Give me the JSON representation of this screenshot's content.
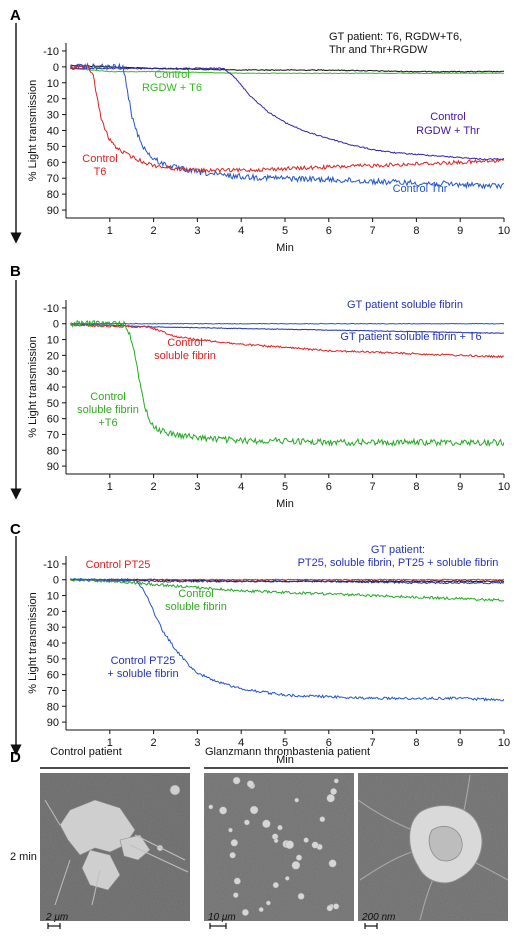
{
  "chart_data": [
    {
      "type": "line",
      "panel": "A",
      "ylabel": "% Light transmission",
      "xlabel": "Min",
      "xlim": [
        0,
        10
      ],
      "ylim": [
        -15,
        95
      ],
      "y_inverted": true,
      "xticks": [
        1,
        2,
        3,
        4,
        5,
        6,
        7,
        8,
        9,
        10
      ],
      "yticks": [
        -10,
        0,
        10,
        20,
        30,
        40,
        50,
        60,
        70,
        80,
        90
      ],
      "annotations": [
        {
          "text": "GT patient: T6, RGDW+T6,",
          "color": "#111111"
        },
        {
          "text": "Thr and Thr+RGDW",
          "color": "#111111"
        },
        {
          "text": "Control",
          "color": "#33bb22"
        },
        {
          "text": "RGDW + T6",
          "color": "#33bb22"
        },
        {
          "text": "Control",
          "color": "#4411aa"
        },
        {
          "text": "RGDW + Thr",
          "color": "#4411aa"
        },
        {
          "text": "Control",
          "color": "#dd2222"
        },
        {
          "text": "T6",
          "color": "#dd2222"
        },
        {
          "text": "Control Thr",
          "color": "#2255cc"
        }
      ],
      "series": [
        {
          "name": "Control T6",
          "color": "#dd2222",
          "noise": 1.2,
          "x": [
            0.1,
            0.5,
            0.62,
            0.7,
            0.8,
            0.9,
            1.0,
            1.2,
            1.4,
            1.6,
            1.8,
            2.0,
            2.5,
            3.0,
            3.5,
            4.0,
            5.0,
            6.0,
            7.0,
            8.0,
            9.0,
            10.0
          ],
          "y": [
            0,
            0,
            5,
            18,
            32,
            40,
            46,
            52,
            55,
            58,
            60,
            62,
            64,
            65,
            65,
            65,
            64,
            63,
            62,
            61,
            60,
            59
          ]
        },
        {
          "name": "Control Thr",
          "color": "#2255cc",
          "noise": 1.8,
          "x": [
            0.1,
            1.3,
            1.4,
            1.5,
            1.6,
            1.8,
            2.0,
            2.3,
            2.6,
            3.0,
            3.5,
            4.0,
            5.0,
            6.0,
            7.0,
            8.0,
            9.0,
            10.0
          ],
          "y": [
            0,
            0,
            15,
            30,
            40,
            52,
            58,
            62,
            64,
            66,
            68,
            69,
            70,
            71,
            72,
            73,
            74,
            75
          ]
        },
        {
          "name": "Control RGDW + Thr",
          "color": "#3322aa",
          "noise": 0.4,
          "x": [
            0.1,
            3.6,
            3.8,
            4.2,
            4.6,
            5.0,
            5.5,
            6.0,
            6.5,
            7.0,
            7.5,
            8.0,
            8.5,
            9.0,
            9.5,
            10.0
          ],
          "y": [
            1,
            1,
            5,
            18,
            28,
            35,
            41,
            45,
            49,
            52,
            54,
            55,
            56,
            57,
            58,
            58
          ]
        },
        {
          "name": "Control RGDW + T6",
          "color": "#33bb22",
          "noise": 0.2,
          "x": [
            0.1,
            0.6,
            1.0,
            2.0,
            4.0,
            6.0,
            8.0,
            10.0
          ],
          "y": [
            1,
            2,
            3,
            3,
            4,
            4,
            4,
            4
          ]
        },
        {
          "name": "GT patient",
          "color": "#111111",
          "noise": 0.3,
          "x": [
            0.1,
            1.0,
            2.0,
            4.0,
            6.0,
            8.0,
            10.0
          ],
          "y": [
            -1,
            0,
            1,
            2,
            2,
            3,
            3
          ]
        }
      ]
    },
    {
      "type": "line",
      "panel": "B",
      "ylabel": "% Light transmission",
      "xlabel": "Min",
      "xlim": [
        0,
        10
      ],
      "ylim": [
        -15,
        95
      ],
      "y_inverted": true,
      "xticks": [
        1,
        2,
        3,
        4,
        5,
        6,
        7,
        8,
        9,
        10
      ],
      "yticks": [
        -10,
        0,
        10,
        20,
        30,
        40,
        50,
        60,
        70,
        80,
        90
      ],
      "annotations": [
        {
          "text": "GT patient soluble fibrin",
          "color": "#2233bb"
        },
        {
          "text": "GT patient soluble fibrin + T6",
          "color": "#2233bb"
        },
        {
          "text": "Control",
          "color": "#dd2222"
        },
        {
          "text": "soluble fibrin",
          "color": "#dd2222"
        },
        {
          "text": "Control",
          "color": "#33aa22"
        },
        {
          "text": "soluble fibrin",
          "color": "#33aa22"
        },
        {
          "text": "+T6",
          "color": "#33aa22"
        }
      ],
      "series": [
        {
          "name": "Control soluble fibrin + T6",
          "color": "#22aa22",
          "noise": 2.0,
          "x": [
            0.1,
            1.35,
            1.5,
            1.6,
            1.7,
            1.8,
            1.9,
            2.0,
            2.2,
            2.5,
            3.0,
            3.5,
            4.0,
            5.0,
            6.0,
            6.8,
            7.0,
            8.0,
            9.0,
            10.0
          ],
          "y": [
            0,
            0,
            10,
            25,
            40,
            52,
            60,
            65,
            68,
            70,
            72,
            73,
            74,
            74,
            75,
            75,
            75,
            75,
            75,
            75
          ]
        },
        {
          "name": "Control soluble fibrin",
          "color": "#dd2222",
          "noise": 0.6,
          "x": [
            0.1,
            1.9,
            2.5,
            3.0,
            4.0,
            5.0,
            6.0,
            7.0,
            8.0,
            9.0,
            10.0
          ],
          "y": [
            1,
            2,
            8,
            10,
            13,
            15,
            17,
            18,
            19,
            20,
            21
          ]
        },
        {
          "name": "GT patient soluble fibrin + T6",
          "color": "#2233aa",
          "noise": 0.2,
          "x": [
            0.1,
            1.0,
            2.0,
            4.0,
            6.0,
            8.0,
            10.0
          ],
          "y": [
            0,
            1,
            2,
            3,
            4,
            5,
            6
          ]
        },
        {
          "name": "GT patient soluble fibrin",
          "color": "#2255cc",
          "noise": 0.2,
          "x": [
            0.1,
            1.0,
            2.0,
            4.0,
            6.0,
            8.0,
            10.0
          ],
          "y": [
            0,
            0,
            0,
            0,
            0,
            0,
            0
          ]
        }
      ]
    },
    {
      "type": "line",
      "panel": "C",
      "ylabel": "% Light transmission",
      "xlabel": "Min",
      "xlim": [
        0,
        10
      ],
      "ylim": [
        -15,
        95
      ],
      "y_inverted": true,
      "xticks": [
        1,
        2,
        3,
        4,
        5,
        6,
        7,
        8,
        9,
        10
      ],
      "yticks": [
        -10,
        0,
        10,
        20,
        30,
        40,
        50,
        60,
        70,
        80,
        90
      ],
      "annotations": [
        {
          "text": "Control PT25",
          "color": "#dd2222"
        },
        {
          "text": "GT patient:",
          "color": "#2233bb"
        },
        {
          "text": "PT25, soluble fibrin, PT25 + soluble fibrin",
          "color": "#2233bb"
        },
        {
          "text": "Control",
          "color": "#33aa22"
        },
        {
          "text": "soluble fibrin",
          "color": "#33aa22"
        },
        {
          "text": "Control PT25",
          "color": "#2233bb"
        },
        {
          "text": "+ soluble fibrin",
          "color": "#2233bb"
        }
      ],
      "series": [
        {
          "name": "Control PT25 + soluble fibrin",
          "color": "#2255cc",
          "noise": 0.8,
          "x": [
            0.1,
            1.6,
            1.8,
            2.0,
            2.2,
            2.5,
            2.8,
            3.0,
            3.5,
            4.0,
            4.5,
            5.0,
            6.0,
            7.0,
            8.0,
            9.0,
            10.0
          ],
          "y": [
            0,
            0,
            8,
            20,
            32,
            44,
            54,
            59,
            65,
            69,
            71,
            73,
            74,
            75,
            75,
            75,
            76
          ]
        },
        {
          "name": "Control soluble fibrin",
          "color": "#22aa22",
          "noise": 0.8,
          "x": [
            0.1,
            1.0,
            2.0,
            3.0,
            4.0,
            5.0,
            6.0,
            7.0,
            8.0,
            9.0,
            10.0
          ],
          "y": [
            0,
            1,
            3,
            5,
            7,
            8,
            9,
            10,
            11,
            12,
            13
          ]
        },
        {
          "name": "Control PT25",
          "color": "#dd2222",
          "noise": 0.3,
          "x": [
            0.1,
            2.0,
            4.0,
            6.0,
            8.0,
            10.0
          ],
          "y": [
            0,
            0,
            0,
            0,
            0,
            0
          ]
        },
        {
          "name": "GT patient",
          "color": "#2233aa",
          "noise": 0.5,
          "x": [
            0.1,
            2.0,
            4.0,
            6.0,
            8.0,
            10.0
          ],
          "y": [
            0,
            1,
            1,
            1,
            2,
            2
          ]
        },
        {
          "name": "GT patient 2",
          "color": "#111111",
          "noise": 0.4,
          "x": [
            0.1,
            2.0,
            4.0,
            6.0,
            8.0,
            10.0
          ],
          "y": [
            0,
            0,
            1,
            1,
            1,
            1
          ]
        }
      ]
    }
  ],
  "panel_d": {
    "letter": "D",
    "row_label": "2 min",
    "groups": [
      {
        "title": "Control patient"
      },
      {
        "title": "Glanzmann thrombastenia patient"
      }
    ],
    "images": [
      {
        "scale_label": "2 μm"
      },
      {
        "scale_label": "10 μm"
      },
      {
        "scale_label": "200 nm"
      }
    ]
  },
  "colors": {
    "axis": "#111111",
    "em_background": "#6e6e6e"
  }
}
